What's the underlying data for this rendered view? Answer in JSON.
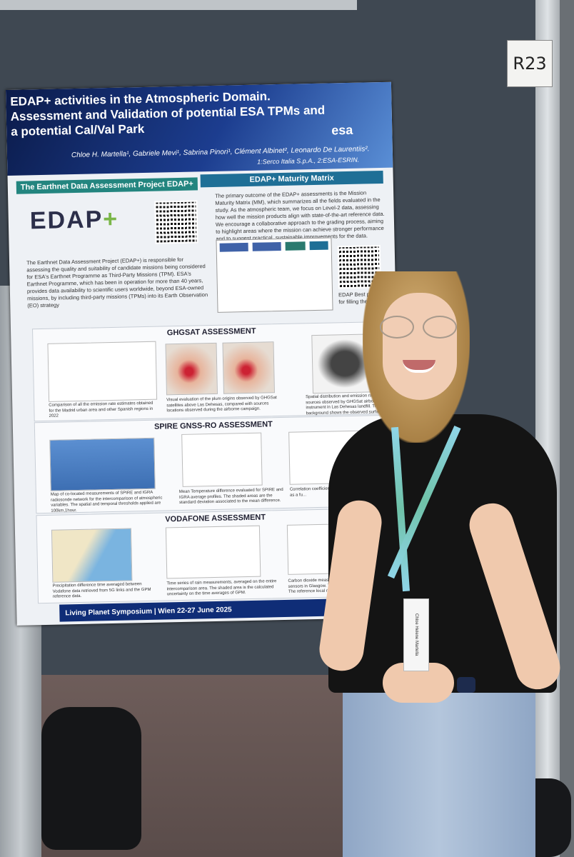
{
  "booth": {
    "tag": "R23"
  },
  "poster": {
    "title": "EDAP+ activities in the Atmospheric Domain. Assessment and Validation of potential ESA TPMs and a potential Cal/Val Park",
    "authors": "Chloe H. Martella¹, Gabriele Mevi¹, Sabrina Pinori¹, Clément Albinet², Leonardo De Laurentiis².",
    "affiliations": "1:Serco Italia S.p.A., 2:ESA-ESRIN.",
    "agency_logo": "esa",
    "banner_left": "The Earthnet Data Assessment Project EDAP+",
    "banner_right": "EDAP+ Maturity Matrix",
    "logo_text": "EDAP",
    "intro_text": "The Earthnet Data Assessment Project (EDAP+) is responsible for assessing the quality and suitability of candidate missions being considered for ESA's Earthnet Programme as Third-Party Missions (TPM). ESA's Earthnet Programme, which has been in operation for more than 40 years, provides data availability to scientific users worldwide, beyond ESA-owned missions, by including third-party missions (TPMs) into its Earth Observation (EO) strategy",
    "mm_text": "The primary outcome of the EDAP+ assessments is the Mission Maturity Matrix (MM), which summarizes all the fields evaluated in the study. As the atmospheric team, we focus on Level-2 data, assessing how well the mission products align with state-of-the-art reference data. We encourage a collaborative approach to the grading process, aiming to highlight areas where the mission can achieve stronger performance and to suggest practical, sustainable improvements for the data.",
    "qr_caption": "EDAP Best practices for filling the MM",
    "sections": [
      {
        "title": "GHGSAT ASSESSMENT",
        "captions": [
          "Comparison of all the emission rate estimates obtained for the Madrid urban area and other Spanish regions in 2022",
          "Visual evaluation of the plum origins observed by GHGSat satellites above Las Dehesas, compared with sources locations observed during the airborne campaign.",
          "Spatial distribution and emission rates of sources observed by GHGSat airborne instrument in Las Dehesas landfill. The background shows the observed surface."
        ]
      },
      {
        "title": "SPIRE GNSS-RO ASSESSMENT",
        "captions": [
          "Map of co-located measurements of SPIRE and IGRA radiosonde network for the intercomparison of atmospheric variables. The spatial and temporal thresholds applied are 100km,1hour.",
          "Mean Temperature difference evaluated for SPIRE and IGRA average profiles. The shaded areas are the standard deviation associated to the mean difference.",
          "Correlation coefficient ev... and IGRA profiles as a fu..."
        ]
      },
      {
        "title": "VODAFONE ASSESSMENT",
        "captions": [
          "Precipitation difference time averaged between Vodafone data retrieved from 5G links and the GPM reference data.",
          "Time series of rain measurements, averaged on the entire intercomparison area. The shaded area is the calculated uncertainty on the time averages of GPM.",
          "Carbon dioxide measu... sensors in Glasgow. The... The reference local netw..."
        ]
      }
    ],
    "footer": "Living Planet Symposium | Wien 22-27 June 2025"
  },
  "badge": {
    "name": "Chloe Helene Martella"
  }
}
